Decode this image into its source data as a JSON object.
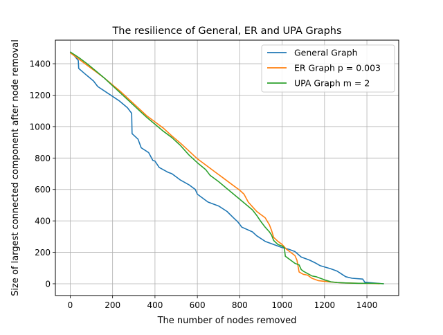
{
  "chart_data": {
    "type": "line",
    "title": "The resilience of General, ER and UPA Graphs",
    "xlabel": "The number of nodes removed",
    "ylabel": "Size of largest connected component after node removal",
    "xlim": [
      -70,
      1550
    ],
    "ylim": [
      -75,
      1550
    ],
    "xticks": [
      0,
      200,
      400,
      600,
      800,
      1000,
      1200,
      1400
    ],
    "yticks": [
      0,
      200,
      400,
      600,
      800,
      1000,
      1200,
      1400
    ],
    "grid": true,
    "legend_position": "upper right",
    "series": [
      {
        "name": "General Graph",
        "color": "#1f77b4",
        "points": [
          [
            0,
            1476
          ],
          [
            20,
            1450
          ],
          [
            38,
            1420
          ],
          [
            40,
            1370
          ],
          [
            70,
            1335
          ],
          [
            110,
            1290
          ],
          [
            130,
            1255
          ],
          [
            180,
            1210
          ],
          [
            230,
            1165
          ],
          [
            270,
            1120
          ],
          [
            290,
            1085
          ],
          [
            292,
            955
          ],
          [
            320,
            920
          ],
          [
            335,
            865
          ],
          [
            370,
            835
          ],
          [
            390,
            785
          ],
          [
            400,
            780
          ],
          [
            420,
            740
          ],
          [
            460,
            710
          ],
          [
            480,
            700
          ],
          [
            520,
            660
          ],
          [
            560,
            630
          ],
          [
            590,
            600
          ],
          [
            600,
            570
          ],
          [
            620,
            550
          ],
          [
            650,
            520
          ],
          [
            700,
            495
          ],
          [
            740,
            460
          ],
          [
            770,
            420
          ],
          [
            790,
            395
          ],
          [
            810,
            360
          ],
          [
            860,
            330
          ],
          [
            880,
            305
          ],
          [
            920,
            270
          ],
          [
            960,
            250
          ],
          [
            1000,
            230
          ],
          [
            1030,
            220
          ],
          [
            1060,
            205
          ],
          [
            1090,
            170
          ],
          [
            1130,
            150
          ],
          [
            1160,
            130
          ],
          [
            1180,
            115
          ],
          [
            1230,
            95
          ],
          [
            1260,
            80
          ],
          [
            1300,
            45
          ],
          [
            1330,
            35
          ],
          [
            1380,
            30
          ],
          [
            1390,
            10
          ],
          [
            1430,
            5
          ],
          [
            1480,
            0
          ]
        ]
      },
      {
        "name": "ER Graph p = 0.003",
        "color": "#ff7f0e",
        "points": [
          [
            0,
            1470
          ],
          [
            40,
            1430
          ],
          [
            80,
            1390
          ],
          [
            120,
            1350
          ],
          [
            160,
            1310
          ],
          [
            200,
            1265
          ],
          [
            240,
            1220
          ],
          [
            280,
            1170
          ],
          [
            320,
            1120
          ],
          [
            360,
            1070
          ],
          [
            400,
            1030
          ],
          [
            440,
            990
          ],
          [
            480,
            940
          ],
          [
            520,
            895
          ],
          [
            560,
            845
          ],
          [
            600,
            795
          ],
          [
            640,
            755
          ],
          [
            680,
            715
          ],
          [
            720,
            675
          ],
          [
            760,
            635
          ],
          [
            800,
            595
          ],
          [
            820,
            570
          ],
          [
            840,
            520
          ],
          [
            860,
            490
          ],
          [
            880,
            460
          ],
          [
            900,
            440
          ],
          [
            920,
            420
          ],
          [
            940,
            375
          ],
          [
            950,
            340
          ],
          [
            960,
            295
          ],
          [
            980,
            270
          ],
          [
            1000,
            250
          ],
          [
            1020,
            220
          ],
          [
            1060,
            180
          ],
          [
            1070,
            150
          ],
          [
            1080,
            75
          ],
          [
            1100,
            60
          ],
          [
            1120,
            55
          ],
          [
            1140,
            35
          ],
          [
            1170,
            20
          ],
          [
            1220,
            12
          ],
          [
            1260,
            8
          ],
          [
            1300,
            5
          ],
          [
            1360,
            3
          ],
          [
            1420,
            2
          ],
          [
            1460,
            0
          ]
        ]
      },
      {
        "name": "UPA Graph m = 2",
        "color": "#2ca02c",
        "points": [
          [
            0,
            1475
          ],
          [
            40,
            1440
          ],
          [
            80,
            1400
          ],
          [
            120,
            1355
          ],
          [
            160,
            1310
          ],
          [
            200,
            1260
          ],
          [
            240,
            1210
          ],
          [
            280,
            1160
          ],
          [
            320,
            1110
          ],
          [
            360,
            1060
          ],
          [
            400,
            1015
          ],
          [
            440,
            970
          ],
          [
            480,
            930
          ],
          [
            520,
            880
          ],
          [
            560,
            820
          ],
          [
            600,
            770
          ],
          [
            640,
            725
          ],
          [
            660,
            690
          ],
          [
            700,
            650
          ],
          [
            740,
            605
          ],
          [
            780,
            560
          ],
          [
            820,
            515
          ],
          [
            860,
            470
          ],
          [
            880,
            435
          ],
          [
            900,
            395
          ],
          [
            920,
            360
          ],
          [
            940,
            330
          ],
          [
            950,
            310
          ],
          [
            960,
            275
          ],
          [
            980,
            250
          ],
          [
            1000,
            240
          ],
          [
            1010,
            230
          ],
          [
            1015,
            175
          ],
          [
            1040,
            150
          ],
          [
            1060,
            130
          ],
          [
            1080,
            120
          ],
          [
            1090,
            90
          ],
          [
            1100,
            80
          ],
          [
            1120,
            65
          ],
          [
            1140,
            50
          ],
          [
            1160,
            45
          ],
          [
            1180,
            35
          ],
          [
            1200,
            25
          ],
          [
            1230,
            12
          ],
          [
            1260,
            8
          ],
          [
            1300,
            5
          ],
          [
            1360,
            3
          ],
          [
            1420,
            3
          ],
          [
            1450,
            2
          ],
          [
            1480,
            0
          ]
        ]
      }
    ]
  }
}
